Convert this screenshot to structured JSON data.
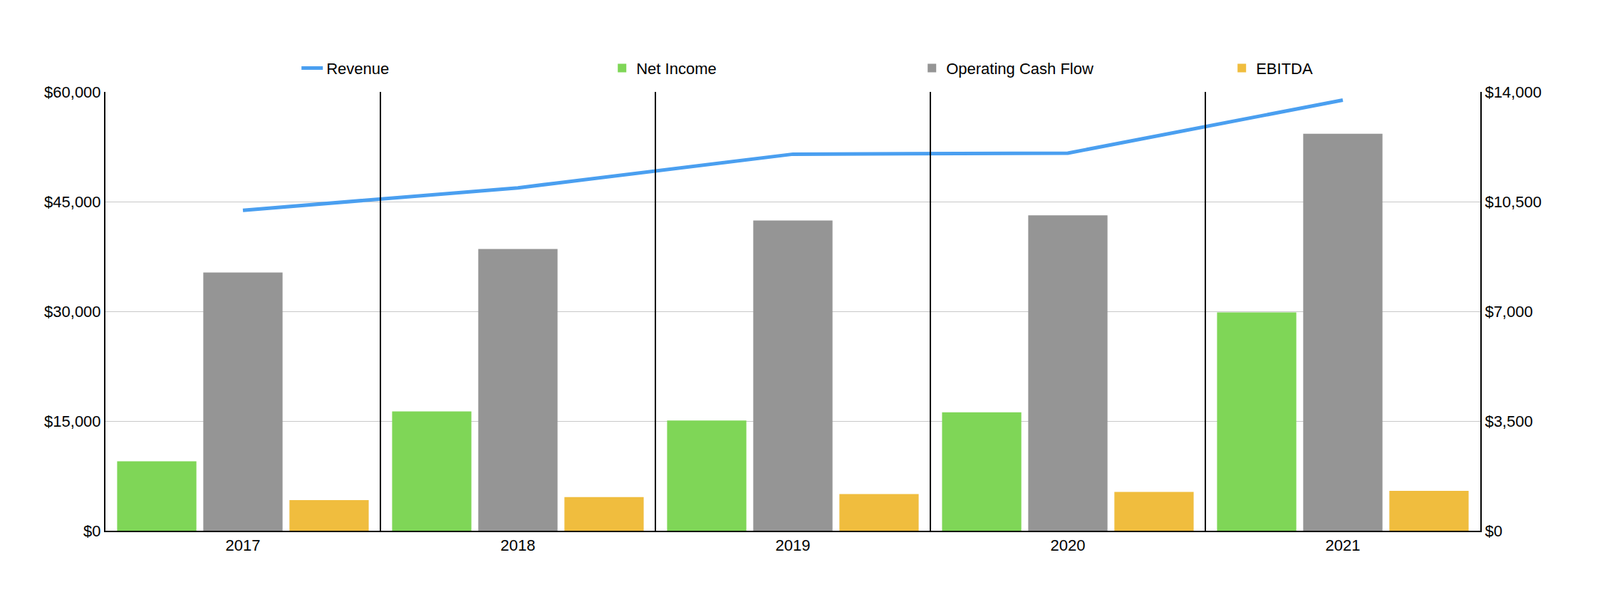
{
  "chart_data": {
    "type": "bar",
    "categories": [
      "2017",
      "2018",
      "2019",
      "2020",
      "2021"
    ],
    "series": [
      {
        "name": "Revenue",
        "type": "line",
        "color": "#4a9ff0",
        "axis": "y",
        "values": [
          43814,
          46884,
          51488,
          51628,
          58884
        ]
      },
      {
        "name": "Net Income",
        "type": "bar",
        "color": "#7fd657",
        "axis": "y2",
        "values": [
          2214,
          3809,
          3516,
          3777,
          6967
        ]
      },
      {
        "name": "Operating Cash Flow",
        "type": "bar",
        "color": "#959595",
        "axis": "y2",
        "values": [
          8237,
          8986,
          9898,
          10060,
          12665
        ]
      },
      {
        "name": "EBITDA",
        "type": "bar",
        "color": "#f0bd3e",
        "axis": "y2",
        "values": [
          977,
          1074,
          1172,
          1237,
          1270
        ]
      }
    ],
    "ylim": [
      0,
      60000
    ],
    "yticks": [
      {
        "value": 0,
        "label": "$0"
      },
      {
        "value": 15000,
        "label": "$15,000"
      },
      {
        "value": 30000,
        "label": "$30,000"
      },
      {
        "value": 45000,
        "label": "$45,000"
      },
      {
        "value": 60000,
        "label": "$60,000"
      }
    ],
    "y2lim": [
      0,
      14000
    ],
    "y2ticks": [
      {
        "value": 0,
        "label": "$0"
      },
      {
        "value": 3500,
        "label": "$3,500"
      },
      {
        "value": 7000,
        "label": "$7,000"
      },
      {
        "value": 10500,
        "label": "$10,500"
      },
      {
        "value": 14000,
        "label": "$14,000"
      }
    ],
    "grid": true,
    "legend": "top"
  }
}
